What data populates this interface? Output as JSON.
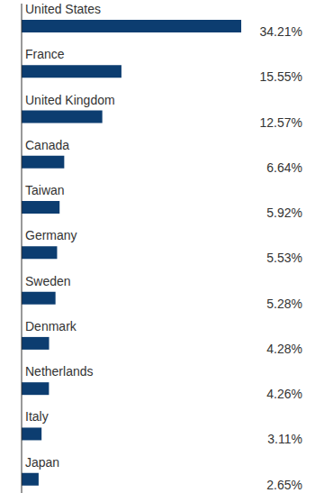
{
  "chart_data": {
    "type": "bar",
    "orientation": "horizontal",
    "categories": [
      "United States",
      "France",
      "United Kingdom",
      "Canada",
      "Taiwan",
      "Germany",
      "Sweden",
      "Denmark",
      "Netherlands",
      "Italy",
      "Japan"
    ],
    "values": [
      34.21,
      15.55,
      12.57,
      6.64,
      5.92,
      5.53,
      5.28,
      4.28,
      4.26,
      3.11,
      2.65
    ],
    "value_labels": [
      "34.21%",
      "15.55%",
      "12.57%",
      "6.64%",
      "5.92%",
      "5.53%",
      "5.28%",
      "4.28%",
      "4.26%",
      "3.11%",
      "2.65%"
    ],
    "color": "#0c3d70",
    "xlim": [
      0,
      45
    ],
    "tick_labels": false,
    "data_labels": true
  }
}
